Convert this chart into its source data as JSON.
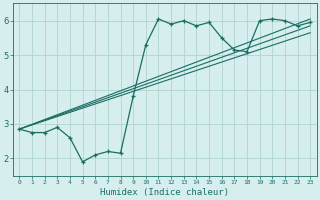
{
  "xlabel": "Humidex (Indice chaleur)",
  "xlim": [
    -0.5,
    23.5
  ],
  "ylim": [
    1.5,
    6.5
  ],
  "yticks": [
    2,
    3,
    4,
    5,
    6
  ],
  "xticks": [
    0,
    1,
    2,
    3,
    4,
    5,
    6,
    7,
    8,
    9,
    10,
    11,
    12,
    13,
    14,
    15,
    16,
    17,
    18,
    19,
    20,
    21,
    22,
    23
  ],
  "bg_color": "#d6eeed",
  "line_color": "#1a6e63",
  "grid_color": "#b0d4cf",
  "line1_x": [
    0,
    1,
    2,
    3,
    4,
    5,
    6,
    7,
    8,
    9,
    10,
    11,
    12,
    13,
    14,
    15,
    16,
    17,
    18,
    19,
    20,
    21,
    22,
    23
  ],
  "line1_y": [
    2.85,
    2.75,
    2.75,
    2.9,
    2.6,
    1.9,
    2.1,
    2.2,
    2.15,
    3.8,
    5.3,
    6.05,
    5.9,
    6.0,
    5.85,
    5.95,
    5.5,
    5.15,
    5.1,
    6.0,
    6.05,
    6.0,
    5.85,
    5.95
  ],
  "line2_x": [
    0,
    23
  ],
  "line2_y": [
    2.85,
    6.05
  ],
  "line3_x": [
    0,
    23
  ],
  "line3_y": [
    2.85,
    5.85
  ],
  "line4_x": [
    0,
    23
  ],
  "line4_y": [
    2.85,
    5.65
  ]
}
